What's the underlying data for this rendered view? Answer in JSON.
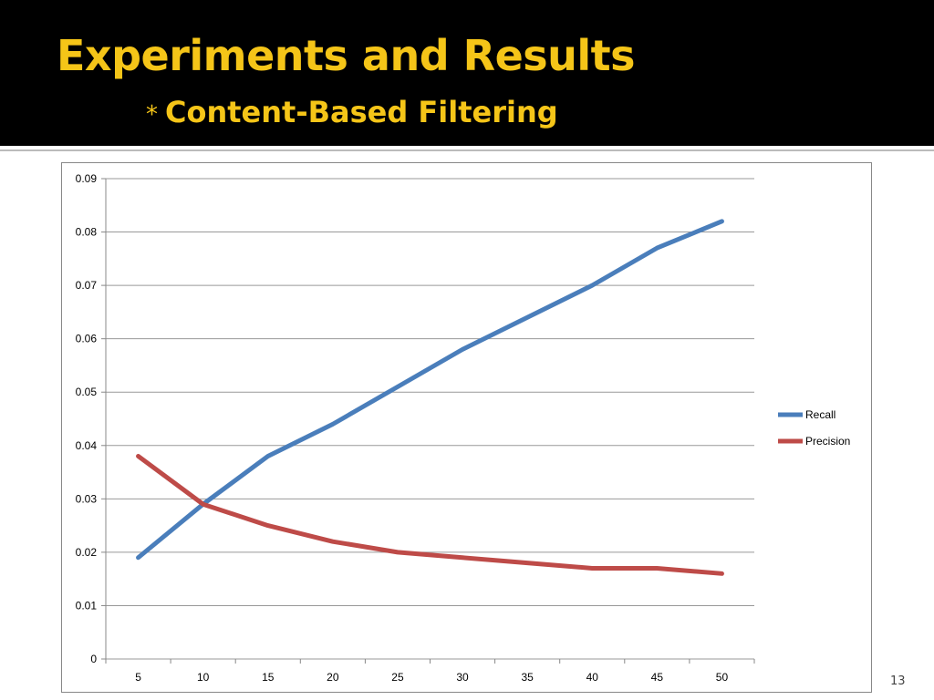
{
  "slide": {
    "title": "Experiments and Results",
    "subtitle_bullet": "*",
    "subtitle": "Content-Based Filtering",
    "page_number": "13",
    "title_color": "#f5c518",
    "header_background": "#000000"
  },
  "chart_data": {
    "type": "line",
    "title": "",
    "xlabel": "",
    "ylabel": "",
    "categories": [
      "5",
      "10",
      "15",
      "20",
      "25",
      "30",
      "35",
      "40",
      "45",
      "50"
    ],
    "ylim": [
      0,
      0.09
    ],
    "yticks": [
      "0",
      "0.01",
      "0.02",
      "0.03",
      "0.04",
      "0.05",
      "0.06",
      "0.07",
      "0.08",
      "0.09"
    ],
    "grid": true,
    "legend_position": "right",
    "series": [
      {
        "name": "Recall",
        "color": "#4a7ebb",
        "values": [
          0.019,
          0.029,
          0.038,
          0.044,
          0.051,
          0.058,
          0.064,
          0.07,
          0.077,
          0.082
        ]
      },
      {
        "name": "Precision",
        "color": "#be4b48",
        "values": [
          0.038,
          0.029,
          0.025,
          0.022,
          0.02,
          0.019,
          0.018,
          0.017,
          0.017,
          0.016
        ]
      }
    ]
  }
}
